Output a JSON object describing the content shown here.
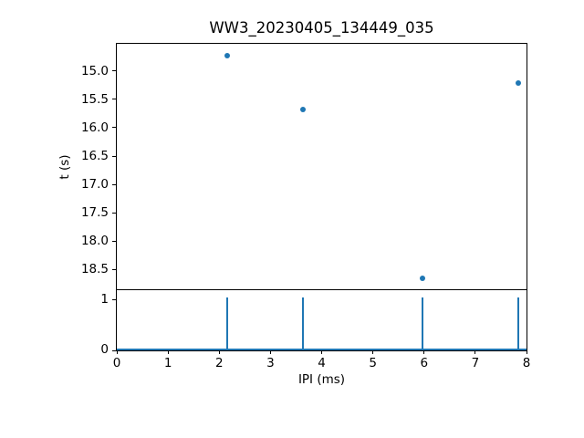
{
  "figure": {
    "background": "#ffffff",
    "accent": "#1f77b4",
    "axis_color": "#000000"
  },
  "chart_data": [
    {
      "type": "scatter",
      "title": "WW3_20230405_134449_035",
      "xlabel": "",
      "ylabel": "t (s)",
      "xlim": [
        0,
        8
      ],
      "ylim_top_to_bottom": [
        14.52,
        18.85
      ],
      "y_axis_inverted": true,
      "grid": false,
      "legend": null,
      "marker": "circle",
      "marker_color": "#1f77b4",
      "ytick_values": [
        15.0,
        15.5,
        16.0,
        16.5,
        17.0,
        17.5,
        18.0,
        18.5
      ],
      "ytick_labels": [
        "15.0",
        "15.5",
        "16.0",
        "16.5",
        "17.0",
        "17.5",
        "18.0",
        "18.5"
      ],
      "points": [
        {
          "x": 2.16,
          "y": 14.73
        },
        {
          "x": 3.64,
          "y": 15.68
        },
        {
          "x": 5.96,
          "y": 18.66
        },
        {
          "x": 7.84,
          "y": 15.22
        }
      ]
    },
    {
      "type": "stem",
      "title": "",
      "xlabel": "IPI (ms)",
      "ylabel": "",
      "xlim": [
        0,
        8
      ],
      "ylim": [
        0,
        1.18
      ],
      "grid": false,
      "legend": null,
      "line_color": "#1f77b4",
      "baseline_value": 0,
      "ytick_values": [
        0,
        1
      ],
      "ytick_labels": [
        "0",
        "1"
      ],
      "xtick_values": [
        0,
        1,
        2,
        3,
        4,
        5,
        6,
        7,
        8
      ],
      "xtick_labels": [
        "0",
        "1",
        "2",
        "3",
        "4",
        "5",
        "6",
        "7",
        "8"
      ],
      "stems": [
        {
          "x": 2.16,
          "height": 1.0
        },
        {
          "x": 3.64,
          "height": 1.0
        },
        {
          "x": 5.96,
          "height": 1.0
        },
        {
          "x": 7.84,
          "height": 1.0
        }
      ]
    }
  ]
}
